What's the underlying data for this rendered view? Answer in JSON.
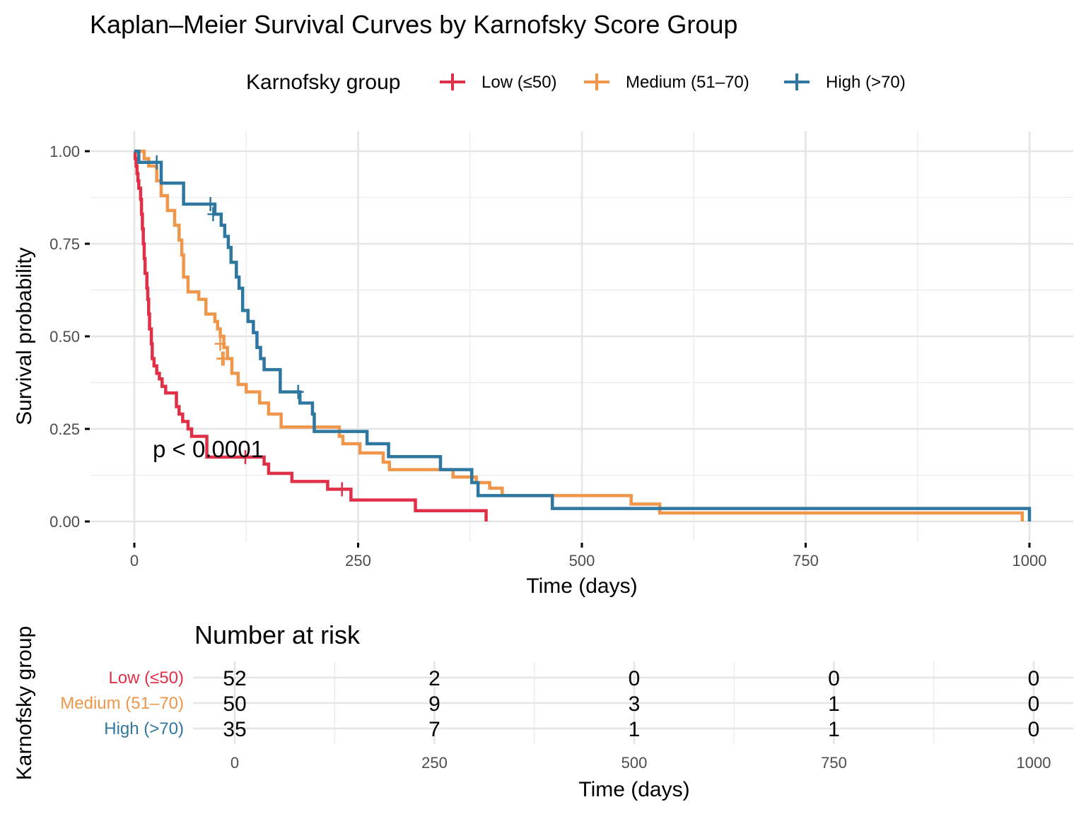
{
  "chart_data": {
    "type": "line",
    "subtype": "kaplan-meier-step",
    "title": "Kaplan–Meier Survival Curves by Karnofsky Score Group",
    "xlabel": "Time (days)",
    "ylabel": "Survival probability",
    "xlim": [
      0,
      1000
    ],
    "ylim": [
      0,
      1
    ],
    "x_ticks": [
      0,
      250,
      500,
      750,
      1000
    ],
    "x_tick_labels": [
      "0",
      "250",
      "500",
      "750",
      "1000"
    ],
    "y_ticks": [
      0,
      0.25,
      0.5,
      0.75,
      1.0
    ],
    "y_tick_labels": [
      "0.00",
      "0.25",
      "0.50",
      "0.75",
      "1.00"
    ],
    "grid": true,
    "legend": {
      "title": "Karnofsky group",
      "placement": "top"
    },
    "annotation": "p < 0.0001",
    "series": [
      {
        "name": "Low (≤50)",
        "color": "#E03048",
        "steps": [
          [
            0,
            1.0
          ],
          [
            1,
            0.98
          ],
          [
            2,
            0.96
          ],
          [
            3,
            0.94
          ],
          [
            4,
            0.92
          ],
          [
            5,
            0.9
          ],
          [
            7,
            0.87
          ],
          [
            8,
            0.83
          ],
          [
            9,
            0.79
          ],
          [
            10,
            0.75
          ],
          [
            11,
            0.71
          ],
          [
            12,
            0.67
          ],
          [
            14,
            0.63
          ],
          [
            15,
            0.6
          ],
          [
            16,
            0.56
          ],
          [
            17,
            0.52
          ],
          [
            19,
            0.48
          ],
          [
            20,
            0.44
          ],
          [
            22,
            0.42
          ],
          [
            25,
            0.4
          ],
          [
            28,
            0.385
          ],
          [
            31,
            0.365
          ],
          [
            35,
            0.347
          ],
          [
            47,
            0.31
          ],
          [
            50,
            0.29
          ],
          [
            54,
            0.27
          ],
          [
            60,
            0.25
          ],
          [
            64,
            0.23
          ],
          [
            81,
            0.174
          ],
          [
            145,
            0.155
          ],
          [
            150,
            0.13
          ],
          [
            176,
            0.108
          ],
          [
            216,
            0.087
          ],
          [
            242,
            0.058
          ],
          [
            314,
            0.029
          ],
          [
            393,
            0.0
          ]
        ],
        "censored": [
          [
            124,
            0.174
          ],
          [
            232,
            0.087
          ]
        ]
      },
      {
        "name": "Medium (51–70)",
        "color": "#F0964A",
        "steps": [
          [
            0,
            1.0
          ],
          [
            11,
            0.98
          ],
          [
            16,
            0.96
          ],
          [
            25,
            0.92
          ],
          [
            30,
            0.88
          ],
          [
            37,
            0.84
          ],
          [
            45,
            0.8
          ],
          [
            50,
            0.76
          ],
          [
            53,
            0.72
          ],
          [
            55,
            0.66
          ],
          [
            60,
            0.62
          ],
          [
            72,
            0.6
          ],
          [
            80,
            0.56
          ],
          [
            90,
            0.54
          ],
          [
            93,
            0.52
          ],
          [
            96,
            0.5
          ],
          [
            100,
            0.47
          ],
          [
            104,
            0.44
          ],
          [
            109,
            0.4
          ],
          [
            116,
            0.37
          ],
          [
            125,
            0.35
          ],
          [
            140,
            0.32
          ],
          [
            150,
            0.29
          ],
          [
            164,
            0.255
          ],
          [
            229,
            0.23
          ],
          [
            233,
            0.21
          ],
          [
            252,
            0.185
          ],
          [
            278,
            0.16
          ],
          [
            285,
            0.14
          ],
          [
            356,
            0.12
          ],
          [
            382,
            0.105
          ],
          [
            397,
            0.09
          ],
          [
            411,
            0.07
          ],
          [
            555,
            0.047
          ],
          [
            587,
            0.023
          ],
          [
            992,
            0.0
          ]
        ],
        "censored": [
          [
            96,
            0.48
          ],
          [
            98,
            0.44
          ],
          [
            100,
            0.44
          ]
        ]
      },
      {
        "name": "High (>70)",
        "color": "#2E77A0",
        "steps": [
          [
            0,
            1.0
          ],
          [
            5,
            0.97
          ],
          [
            30,
            0.914
          ],
          [
            55,
            0.857
          ],
          [
            90,
            0.83
          ],
          [
            97,
            0.8
          ],
          [
            101,
            0.77
          ],
          [
            105,
            0.74
          ],
          [
            108,
            0.7
          ],
          [
            114,
            0.66
          ],
          [
            117,
            0.63
          ],
          [
            121,
            0.57
          ],
          [
            127,
            0.54
          ],
          [
            133,
            0.51
          ],
          [
            137,
            0.47
          ],
          [
            141,
            0.44
          ],
          [
            145,
            0.41
          ],
          [
            163,
            0.35
          ],
          [
            185,
            0.32
          ],
          [
            199,
            0.29
          ],
          [
            201,
            0.243
          ],
          [
            260,
            0.21
          ],
          [
            284,
            0.175
          ],
          [
            342,
            0.14
          ],
          [
            377,
            0.105
          ],
          [
            384,
            0.07
          ],
          [
            467,
            0.035
          ],
          [
            1000,
            0.0
          ]
        ],
        "censored": [
          [
            25,
            0.97
          ],
          [
            85,
            0.857
          ],
          [
            88,
            0.83
          ],
          [
            183,
            0.35
          ]
        ]
      }
    ],
    "risk_table": {
      "title": "Number at risk",
      "ylabel": "Karnofsky group",
      "xlabel": "Time (days)",
      "times": [
        0,
        250,
        500,
        750,
        1000
      ],
      "time_labels": [
        "0",
        "250",
        "500",
        "750",
        "1000"
      ],
      "rows": [
        {
          "group": "Low (≤50)",
          "color": "#E03048",
          "values": [
            "52",
            "2",
            "0",
            "0",
            "0"
          ]
        },
        {
          "group": "Medium (51–70)",
          "color": "#F0964A",
          "values": [
            "50",
            "9",
            "3",
            "1",
            "0"
          ]
        },
        {
          "group": "High (>70)",
          "color": "#2E77A0",
          "values": [
            "35",
            "7",
            "1",
            "1",
            "0"
          ]
        }
      ]
    }
  }
}
